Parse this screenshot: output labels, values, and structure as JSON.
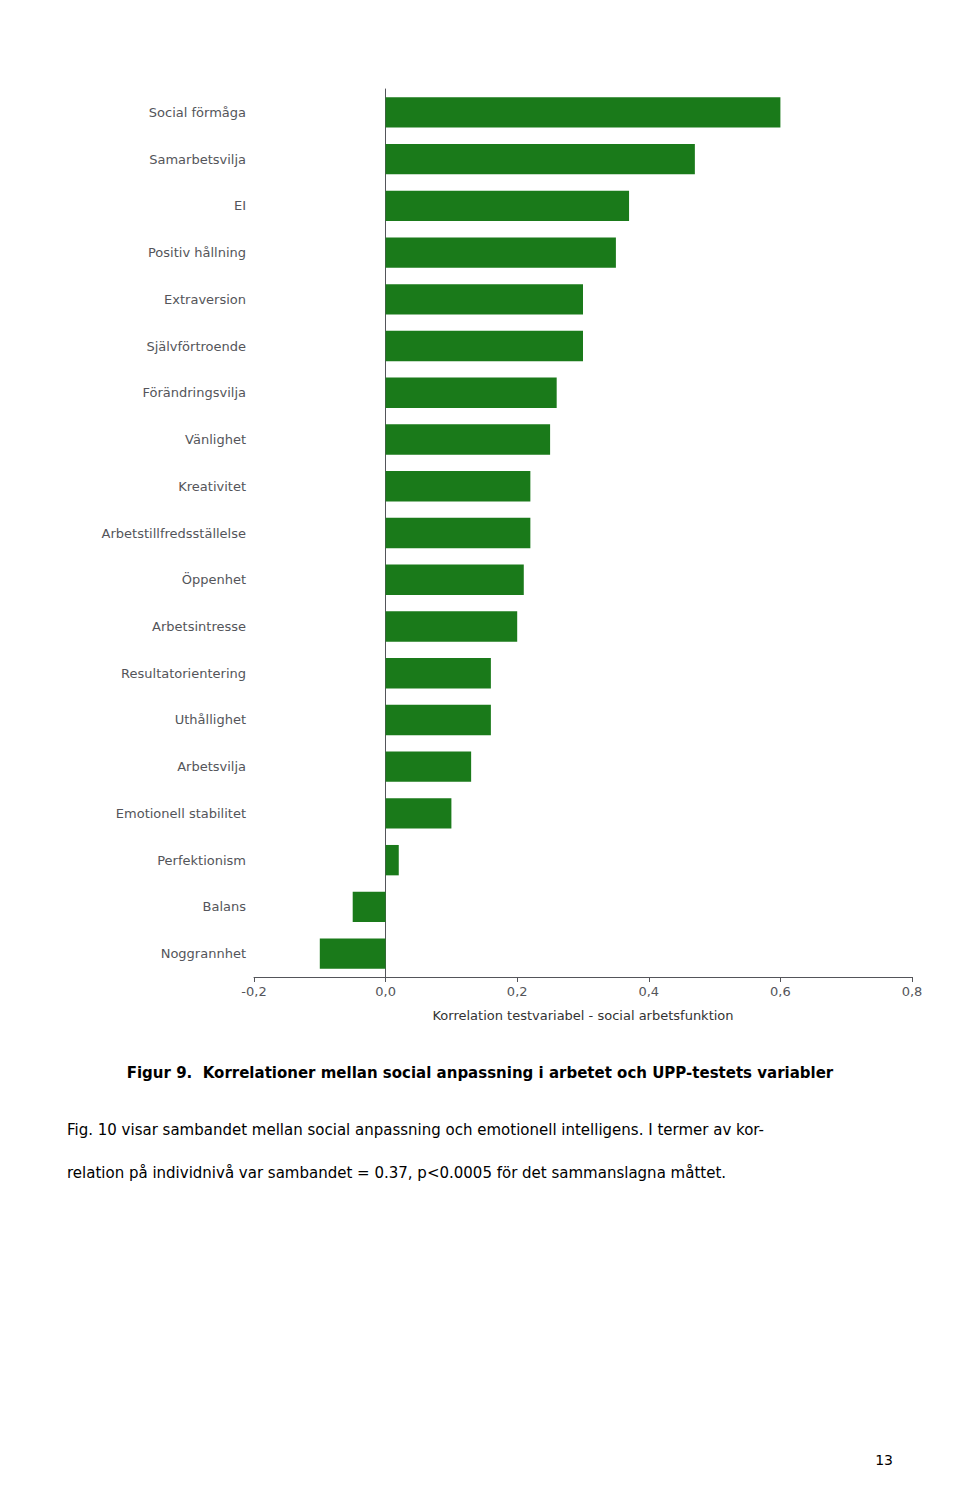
{
  "chart_data": {
    "type": "bar",
    "orientation": "horizontal",
    "title": "Figur 9.  Korrelationer mellan social anpassning i arbetet och UPP-testets variabler",
    "x_label": "Korrelation testvariabel - social arbetsfunktion",
    "categories": [
      "Social förmåga",
      "Samarbetsvilja",
      "EI",
      "Positiv hållning",
      "Extraversion",
      "Självförtroende",
      "Förändringsvilja",
      "Vänlighet",
      "Kreativitet",
      "Arbetstillfredsställelse",
      "Öppenhet",
      "Arbetsintresse",
      "Resultatorientering",
      "Uthållighet",
      "Arbetsvilja",
      "Emotionell stabilitet",
      "Perfektionism",
      "Balans",
      "Noggrannhet"
    ],
    "values": [
      0.6,
      0.47,
      0.37,
      0.35,
      0.3,
      0.3,
      0.26,
      0.25,
      0.22,
      0.22,
      0.21,
      0.2,
      0.16,
      0.16,
      0.13,
      0.1,
      0.02,
      -0.05,
      -0.1
    ],
    "color": "#1a7a1a",
    "xlim": [
      -0.2,
      0.8
    ],
    "xticks": [
      {
        "value": -0.2,
        "label": "-0,2"
      },
      {
        "value": 0.0,
        "label": "0,0"
      },
      {
        "value": 0.2,
        "label": "0,2"
      },
      {
        "value": 0.4,
        "label": "0,4"
      },
      {
        "value": 0.6,
        "label": "0,6"
      },
      {
        "value": 0.8,
        "label": "0,8"
      }
    ],
    "grid": false,
    "annotations": [
      "Fig. 10 visar sambandet mellan social anpassning och emotionell intelligens. I termer av kor-",
      "relation på individnivå var sambandet = 0.37, p<0.0005 för det sammanslagna måttet.",
      "13"
    ]
  }
}
